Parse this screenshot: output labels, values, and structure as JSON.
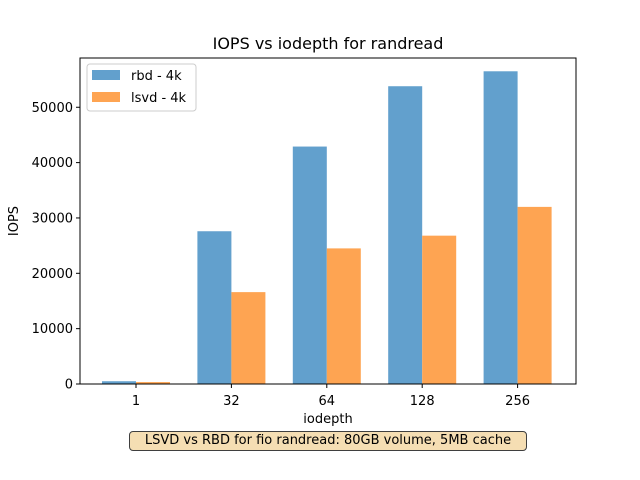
{
  "chart_data": {
    "type": "bar",
    "title": "IOPS vs iodepth for randread",
    "xlabel": "iodepth",
    "ylabel": "IOPS",
    "categories": [
      "1",
      "32",
      "64",
      "128",
      "256"
    ],
    "series": [
      {
        "name": "rbd - 4k",
        "color": "#62a0cd",
        "values": [
          500,
          27600,
          42900,
          53800,
          56500
        ]
      },
      {
        "name": "lsvd - 4k",
        "color": "#fea452",
        "values": [
          350,
          16600,
          24500,
          26800,
          32000
        ]
      }
    ],
    "ylim": [
      0,
      58900
    ],
    "yticks": [
      0,
      10000,
      20000,
      30000,
      40000,
      50000
    ],
    "ytick_labels": [
      "0",
      "10000",
      "20000",
      "30000",
      "40000",
      "50000"
    ],
    "legend_position": "top-left",
    "grid": false
  },
  "caption": "LSVD vs RBD for fio randread: 80GB volume, 5MB cache"
}
